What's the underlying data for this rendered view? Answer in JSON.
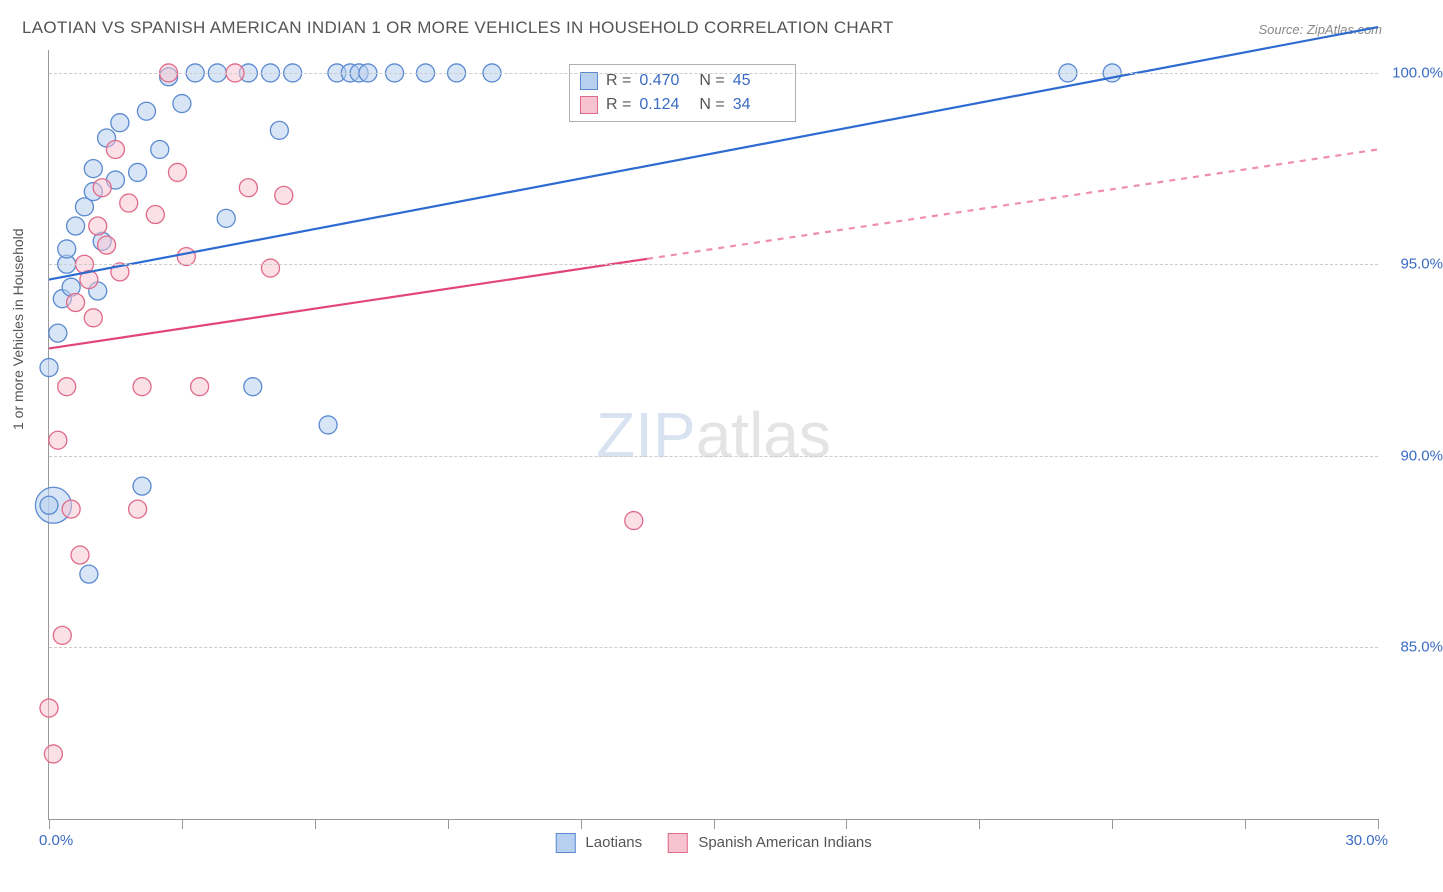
{
  "title": "LAOTIAN VS SPANISH AMERICAN INDIAN 1 OR MORE VEHICLES IN HOUSEHOLD CORRELATION CHART",
  "source_label": "Source: ZipAtlas.com",
  "y_axis_label": "1 or more Vehicles in Household",
  "watermark": {
    "part1": "ZIP",
    "part2": "atlas"
  },
  "chart": {
    "type": "scatter",
    "background_color": "#ffffff",
    "grid_color": "#cccccc",
    "axis_color": "#999999",
    "xlim": [
      0.0,
      30.0
    ],
    "ylim": [
      80.5,
      100.6
    ],
    "xticks": [
      0.0,
      3.0,
      6.0,
      9.0,
      12.0,
      15.0,
      18.0,
      21.0,
      24.0,
      27.0,
      30.0
    ],
    "yticks": [
      85.0,
      90.0,
      95.0,
      100.0
    ],
    "ytick_labels": [
      "85.0%",
      "90.0%",
      "95.0%",
      "100.0%"
    ],
    "xcorner_left": "0.0%",
    "xcorner_right": "30.0%",
    "marker_radius": 9,
    "marker_stroke_width": 1.3,
    "line_width": 2.2,
    "label_fontsize": 15,
    "label_color": "#3a6bc5",
    "series": [
      {
        "name": "Laotians",
        "fill": "#b8d0f0",
        "stroke": "#5a8ad0",
        "fill_opacity": 0.55,
        "line_color": "#2e6bd0",
        "r_value": "0.470",
        "n_value": "45",
        "trend": {
          "x1": 0.0,
          "y1": 94.6,
          "x2": 30.0,
          "y2": 101.2,
          "solid_until_x": 30.0
        },
        "points": [
          [
            0.0,
            92.3
          ],
          [
            0.0,
            88.7
          ],
          [
            0.2,
            93.2
          ],
          [
            0.3,
            94.1
          ],
          [
            0.4,
            95.0
          ],
          [
            0.4,
            95.4
          ],
          [
            0.5,
            94.4
          ],
          [
            0.6,
            96.0
          ],
          [
            0.8,
            96.5
          ],
          [
            0.9,
            86.9
          ],
          [
            1.0,
            97.5
          ],
          [
            1.0,
            96.9
          ],
          [
            1.1,
            94.3
          ],
          [
            1.2,
            95.6
          ],
          [
            1.3,
            98.3
          ],
          [
            1.5,
            97.2
          ],
          [
            1.6,
            98.7
          ],
          [
            2.0,
            97.4
          ],
          [
            2.1,
            89.2
          ],
          [
            2.2,
            99.0
          ],
          [
            2.5,
            98.0
          ],
          [
            2.7,
            99.9
          ],
          [
            3.0,
            99.2
          ],
          [
            3.3,
            100.0
          ],
          [
            3.8,
            100.0
          ],
          [
            4.0,
            96.2
          ],
          [
            4.5,
            100.0
          ],
          [
            4.6,
            91.8
          ],
          [
            5.0,
            100.0
          ],
          [
            5.2,
            98.5
          ],
          [
            5.5,
            100.0
          ],
          [
            6.3,
            90.8
          ],
          [
            6.5,
            100.0
          ],
          [
            6.8,
            100.0
          ],
          [
            7.0,
            100.0
          ],
          [
            7.2,
            100.0
          ],
          [
            7.8,
            100.0
          ],
          [
            8.5,
            100.0
          ],
          [
            9.2,
            100.0
          ],
          [
            10.0,
            100.0
          ],
          [
            23.0,
            100.0
          ],
          [
            24.0,
            100.0
          ]
        ],
        "big_point": [
          0.1,
          88.7,
          18
        ]
      },
      {
        "name": "Spanish American Indians",
        "fill": "#f7c3d0",
        "stroke": "#e06a8a",
        "fill_opacity": 0.5,
        "line_color": "#e2457a",
        "r_value": "0.124",
        "n_value": "34",
        "trend": {
          "x1": 0.0,
          "y1": 92.8,
          "x2": 30.0,
          "y2": 98.0,
          "solid_until_x": 13.5
        },
        "points": [
          [
            0.0,
            83.4
          ],
          [
            0.1,
            82.2
          ],
          [
            0.2,
            90.4
          ],
          [
            0.3,
            85.3
          ],
          [
            0.4,
            91.8
          ],
          [
            0.5,
            88.6
          ],
          [
            0.6,
            94.0
          ],
          [
            0.7,
            87.4
          ],
          [
            0.8,
            95.0
          ],
          [
            0.9,
            94.6
          ],
          [
            1.0,
            93.6
          ],
          [
            1.1,
            96.0
          ],
          [
            1.2,
            97.0
          ],
          [
            1.3,
            95.5
          ],
          [
            1.5,
            98.0
          ],
          [
            1.6,
            94.8
          ],
          [
            1.8,
            96.6
          ],
          [
            2.0,
            88.6
          ],
          [
            2.1,
            91.8
          ],
          [
            2.4,
            96.3
          ],
          [
            2.7,
            100.0
          ],
          [
            2.9,
            97.4
          ],
          [
            3.1,
            95.2
          ],
          [
            3.4,
            91.8
          ],
          [
            4.2,
            100.0
          ],
          [
            4.5,
            97.0
          ],
          [
            5.0,
            94.9
          ],
          [
            5.3,
            96.8
          ],
          [
            13.2,
            88.3
          ]
        ]
      }
    ]
  },
  "stats_box": {
    "r_prefix": "R = ",
    "n_prefix": "N = "
  },
  "legend_position": "bottom-center"
}
